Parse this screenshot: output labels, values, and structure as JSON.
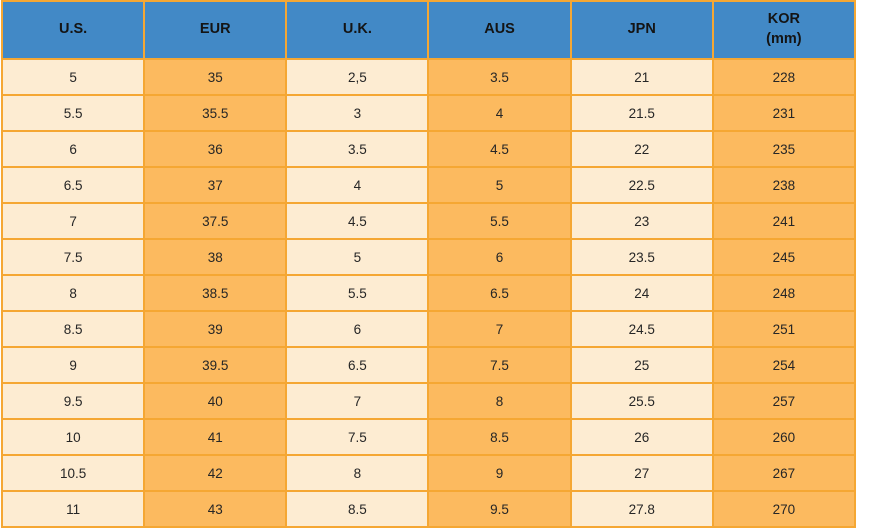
{
  "colors": {
    "header_bg": "#4289c6",
    "cell_light": "#fdecd2",
    "cell_dark": "#fcba5f",
    "border": "#f5a733",
    "header_text": "#141414",
    "cell_text": "#262626",
    "page_bg": "#ffffff"
  },
  "chart_data": {
    "type": "table",
    "columns": [
      {
        "label": "U.S."
      },
      {
        "label": "EUR"
      },
      {
        "label": "U.K."
      },
      {
        "label": "AUS"
      },
      {
        "label": "JPN"
      },
      {
        "label": "KOR",
        "sublabel": "(mm)"
      }
    ],
    "rows": [
      [
        "5",
        "35",
        "2,5",
        "3.5",
        "21",
        "228"
      ],
      [
        "5.5",
        "35.5",
        "3",
        "4",
        "21.5",
        "231"
      ],
      [
        "6",
        "36",
        "3.5",
        "4.5",
        "22",
        "235"
      ],
      [
        "6.5",
        "37",
        "4",
        "5",
        "22.5",
        "238"
      ],
      [
        "7",
        "37.5",
        "4.5",
        "5.5",
        "23",
        "241"
      ],
      [
        "7.5",
        "38",
        "5",
        "6",
        "23.5",
        "245"
      ],
      [
        "8",
        "38.5",
        "5.5",
        "6.5",
        "24",
        "248"
      ],
      [
        "8.5",
        "39",
        "6",
        "7",
        "24.5",
        "251"
      ],
      [
        "9",
        "39.5",
        "6.5",
        "7.5",
        "25",
        "254"
      ],
      [
        "9.5",
        "40",
        "7",
        "8",
        "25.5",
        "257"
      ],
      [
        "10",
        "41",
        "7.5",
        "8.5",
        "26",
        "260"
      ],
      [
        "10.5",
        "42",
        "8",
        "9",
        "27",
        "267"
      ],
      [
        "11",
        "43",
        "8.5",
        "9.5",
        "27.8",
        "270"
      ]
    ]
  }
}
